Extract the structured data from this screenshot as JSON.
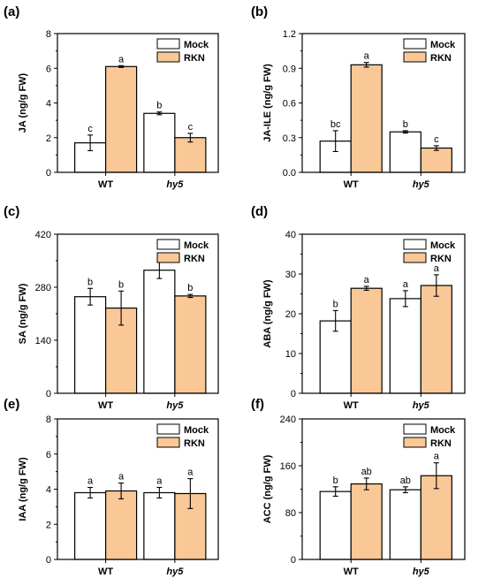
{
  "colors": {
    "mock": "#ffffff",
    "rkn": "#f9c896",
    "stroke": "#000000",
    "error": "#000000"
  },
  "chart_data": [
    {
      "panel": "(a)",
      "type": "bar",
      "ylabel": "JA (ng/g FW)",
      "ylim": [
        0,
        8
      ],
      "yticks": [
        "0",
        "2",
        "4",
        "6",
        "8"
      ],
      "categories": [
        "WT",
        "hy5"
      ],
      "category_italic": [
        false,
        true
      ],
      "legend": {
        "position": "top-right",
        "entries": [
          "Mock",
          "RKN"
        ]
      },
      "series": [
        {
          "name": "Mock",
          "values": [
            1.7,
            3.4
          ],
          "errors": [
            0.45,
            0.08
          ],
          "letters": [
            "c",
            "b"
          ]
        },
        {
          "name": "RKN",
          "values": [
            6.1,
            2.0
          ],
          "errors": [
            0.05,
            0.25
          ],
          "letters": [
            "a",
            "c"
          ]
        }
      ]
    },
    {
      "panel": "(b)",
      "type": "bar",
      "ylabel": "JA-ILE (ng/g FW)",
      "ylim": [
        0,
        1.2
      ],
      "yticks": [
        "0.0",
        "0.3",
        "0.6",
        "0.9",
        "1.2"
      ],
      "categories": [
        "WT",
        "hy5"
      ],
      "category_italic": [
        false,
        true
      ],
      "legend": {
        "position": "top-right",
        "entries": [
          "Mock",
          "RKN"
        ]
      },
      "series": [
        {
          "name": "Mock",
          "values": [
            0.27,
            0.35
          ],
          "errors": [
            0.09,
            0.01
          ],
          "letters": [
            "bc",
            "b"
          ]
        },
        {
          "name": "RKN",
          "values": [
            0.93,
            0.21
          ],
          "errors": [
            0.02,
            0.02
          ],
          "letters": [
            "a",
            "c"
          ]
        }
      ]
    },
    {
      "panel": "(c)",
      "type": "bar",
      "ylabel": "SA (ng/g FW)",
      "ylim": [
        0,
        420
      ],
      "yticks": [
        "0",
        "140",
        "280",
        "420"
      ],
      "categories": [
        "WT",
        "hy5"
      ],
      "category_italic": [
        false,
        true
      ],
      "legend": {
        "position": "top-right",
        "entries": [
          "Mock",
          "RKN"
        ]
      },
      "series": [
        {
          "name": "Mock",
          "values": [
            255,
            325
          ],
          "errors": [
            22,
            22
          ],
          "letters": [
            "b",
            "a"
          ]
        },
        {
          "name": "RKN",
          "values": [
            225,
            257
          ],
          "errors": [
            45,
            4
          ],
          "letters": [
            "b",
            "b"
          ]
        }
      ]
    },
    {
      "panel": "(d)",
      "type": "bar",
      "ylabel": "ABA (ng/g FW)",
      "ylim": [
        0,
        40
      ],
      "yticks": [
        "0",
        "10",
        "20",
        "30",
        "40"
      ],
      "categories": [
        "WT",
        "hy5"
      ],
      "category_italic": [
        false,
        true
      ],
      "legend": {
        "position": "top-right",
        "entries": [
          "Mock",
          "RKN"
        ]
      },
      "series": [
        {
          "name": "Mock",
          "values": [
            18.2,
            23.8
          ],
          "errors": [
            2.6,
            2.0
          ],
          "letters": [
            "b",
            "a"
          ]
        },
        {
          "name": "RKN",
          "values": [
            26.4,
            27.1
          ],
          "errors": [
            0.5,
            2.7
          ],
          "letters": [
            "a",
            "a"
          ]
        }
      ]
    },
    {
      "panel": "(e)",
      "type": "bar",
      "ylabel": "IAA (ng/g FW)",
      "ylim": [
        0,
        8
      ],
      "yticks": [
        "0",
        "2",
        "4",
        "6",
        "8"
      ],
      "categories": [
        "WT",
        "hy5"
      ],
      "category_italic": [
        false,
        true
      ],
      "legend": {
        "position": "top-right",
        "entries": [
          "Mock",
          "RKN"
        ]
      },
      "series": [
        {
          "name": "Mock",
          "values": [
            3.8,
            3.8
          ],
          "errors": [
            0.3,
            0.3
          ],
          "letters": [
            "a",
            "a"
          ]
        },
        {
          "name": "RKN",
          "values": [
            3.9,
            3.75
          ],
          "errors": [
            0.45,
            0.85
          ],
          "letters": [
            "a",
            "a"
          ]
        }
      ]
    },
    {
      "panel": "(f)",
      "type": "bar",
      "ylabel": "ACC (ng/g FW)",
      "ylim": [
        0,
        240
      ],
      "yticks": [
        "0",
        "80",
        "160",
        "240"
      ],
      "categories": [
        "WT",
        "hy5"
      ],
      "category_italic": [
        false,
        true
      ],
      "legend": {
        "position": "top-right",
        "entries": [
          "Mock",
          "RKN"
        ]
      },
      "series": [
        {
          "name": "Mock",
          "values": [
            116,
            119
          ],
          "errors": [
            8,
            5
          ],
          "letters": [
            "b",
            "ab"
          ]
        },
        {
          "name": "RKN",
          "values": [
            129,
            143
          ],
          "errors": [
            10,
            22
          ],
          "letters": [
            "ab",
            "a"
          ]
        }
      ]
    }
  ]
}
